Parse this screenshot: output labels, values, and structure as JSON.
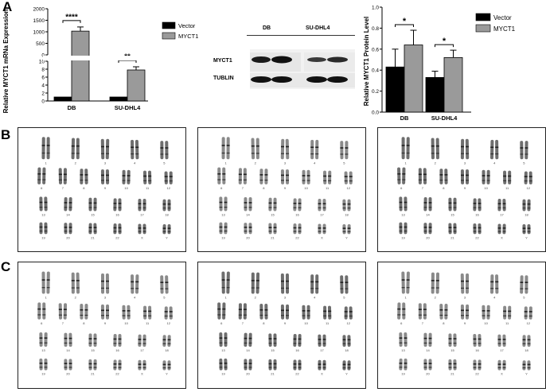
{
  "panels": {
    "a": "A",
    "b": "B",
    "c": "C"
  },
  "chart_data": [
    {
      "type": "bar",
      "ylabel": "Relative MYCT1 mRNa Expression",
      "categories": [
        "DB",
        "SU-DHL4"
      ],
      "axis_break": true,
      "yticks_upper": [
        "0",
        "500",
        "1000",
        "1500",
        "2000"
      ],
      "yticks_lower": [
        "0",
        "2",
        "4",
        "6",
        "8",
        "10"
      ],
      "series": [
        {
          "name": "Vector",
          "color": "#000000",
          "values": [
            1,
            1
          ]
        },
        {
          "name": "MYCT1",
          "color": "#9a9a9a",
          "values": [
            1030,
            7.8
          ],
          "errors": [
            180,
            0.8
          ]
        }
      ],
      "significance": [
        "****",
        "**"
      ],
      "legend": "right"
    },
    {
      "type": "bar",
      "ylabel": "Relative MYCT1 Protein Level",
      "categories": [
        "DB",
        "SU-DHL4"
      ],
      "ylim": [
        0,
        1
      ],
      "yticks": [
        "0.0",
        "0.2",
        "0.4",
        "0.6",
        "0.8",
        "1.0"
      ],
      "series": [
        {
          "name": "Vector",
          "color": "#000000",
          "values": [
            0.43,
            0.33
          ],
          "errors": [
            0.17,
            0.06
          ]
        },
        {
          "name": "MYCT1",
          "color": "#9a9a9a",
          "values": [
            0.64,
            0.52
          ],
          "errors": [
            0.14,
            0.07
          ]
        }
      ],
      "significance": [
        "*",
        "*"
      ],
      "legend": "top-right"
    }
  ],
  "blot": {
    "columns": [
      "DB",
      "SU-DHL4"
    ],
    "rows": [
      "MYCT1",
      "TUBLIN"
    ]
  },
  "karyotype": {
    "rows": [
      [
        "1",
        "2",
        "3",
        "4",
        "5"
      ],
      [
        "6",
        "7",
        "8",
        "9",
        "10",
        "11",
        "12"
      ],
      [
        "13",
        "14",
        "15",
        "16",
        "17",
        "18"
      ],
      [
        "19",
        "20",
        "21",
        "22",
        "X",
        "Y"
      ]
    ]
  }
}
